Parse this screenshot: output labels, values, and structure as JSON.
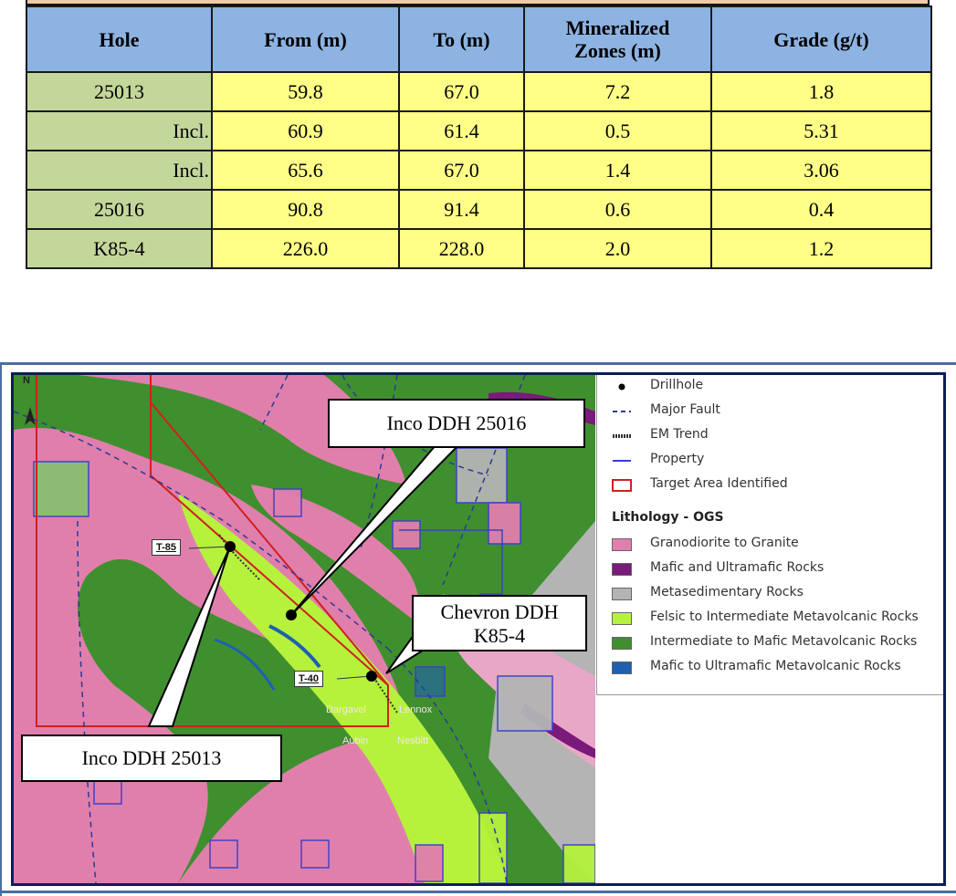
{
  "table": {
    "headers": [
      "Hole",
      "From (m)",
      "To (m)",
      "Mineralized\nZones (m)",
      "Grade (g/t)"
    ],
    "header_line1_mineralized": "Mineralized",
    "header_line2_mineralized": "Zones (m)",
    "rows": [
      {
        "hole": "25013",
        "from": "59.8",
        "to": "67.0",
        "zone": "7.2",
        "grade": "1.8"
      },
      {
        "hole": "Incl.",
        "from": "60.9",
        "to": "61.4",
        "zone": "0.5",
        "grade": "5.31"
      },
      {
        "hole": "Incl.",
        "from": "65.6",
        "to": "67.0",
        "zone": "1.4",
        "grade": "3.06"
      },
      {
        "hole": "25016",
        "from": "90.8",
        "to": "91.4",
        "zone": "0.6",
        "grade": "0.4"
      },
      {
        "hole": "K85-4",
        "from": "226.0",
        "to": "228.0",
        "zone": "2.0",
        "grade": "1.2"
      }
    ],
    "colors": {
      "header_bg": "#8db3e2",
      "hole_bg": "#c4d79b",
      "cell_bg": "#ffff88"
    }
  },
  "map": {
    "north_label": "N",
    "callouts": {
      "inco_25016": "Inco DDH 25016",
      "inco_25013": "Inco DDH 25013",
      "chevron_line1": "Chevron DDH",
      "chevron_line2": "K85-4"
    },
    "trenches": [
      "T-85",
      "T-40"
    ],
    "townships": [
      "Dargavel",
      "Lennox",
      "Aubin",
      "Nesbitt"
    ],
    "legend": {
      "symbols": [
        {
          "icon": "drillhole-dot",
          "label": "Drillhole"
        },
        {
          "icon": "dashed-line",
          "label": "Major Fault"
        },
        {
          "icon": "em-trend-line",
          "label": "EM Trend"
        },
        {
          "icon": "property-line",
          "label": "Property"
        },
        {
          "icon": "red-box",
          "label": "Target Area Identified"
        }
      ],
      "lithology_title": "Lithology - OGS",
      "lithology": [
        {
          "color": "#e07fac",
          "label": "Granodiorite to Granite"
        },
        {
          "color": "#7a1a7a",
          "label": "Mafic and Ultramafic Rocks"
        },
        {
          "color": "#b4b4b4",
          "label": "Metasedimentary Rocks"
        },
        {
          "color": "#b6f23c",
          "label": "Felsic to Intermediate Metavolcanic Rocks"
        },
        {
          "color": "#3f8f2f",
          "label": "Intermediate to Mafic Metavolcanic Rocks"
        },
        {
          "color": "#1f5fb0",
          "label": "Mafic to Ultramafic Metavolcanic Rocks"
        }
      ]
    }
  }
}
